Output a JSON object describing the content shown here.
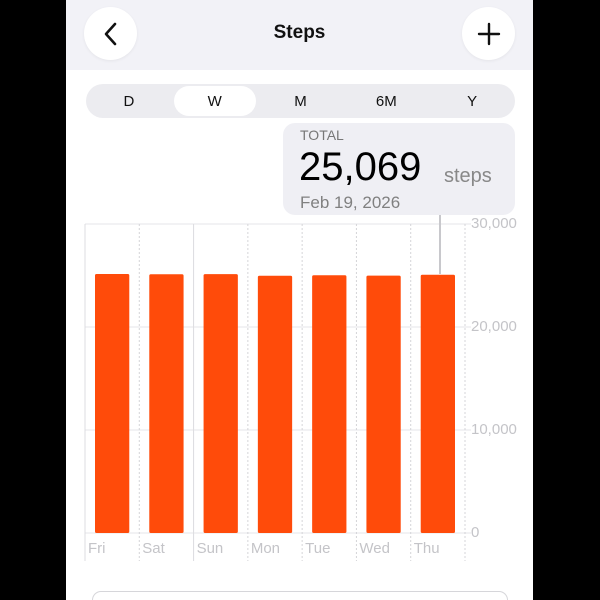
{
  "header": {
    "title": "Steps",
    "back_icon": "chevron-left-icon",
    "add_icon": "plus-icon"
  },
  "segments": {
    "items": [
      "D",
      "W",
      "M",
      "6M",
      "Y"
    ],
    "selected": "W"
  },
  "tooltip": {
    "label": "TOTAL",
    "value": "25,069",
    "unit": "steps",
    "date": "Feb 19, 2026"
  },
  "chart_data": {
    "type": "bar",
    "categories": [
      "Fri",
      "Sat",
      "Sun",
      "Mon",
      "Tue",
      "Wed",
      "Thu"
    ],
    "values": [
      25150,
      25120,
      25130,
      24980,
      25020,
      24990,
      25069
    ],
    "ylim": [
      0,
      30000
    ],
    "yticks": [
      "30,000",
      "20,000",
      "10,000",
      "0"
    ],
    "ytick_values": [
      30000,
      20000,
      10000,
      0
    ],
    "grid": true,
    "yaxis_position": "right",
    "bar_color": "#ff4b0a",
    "highlighted": "Thu"
  }
}
